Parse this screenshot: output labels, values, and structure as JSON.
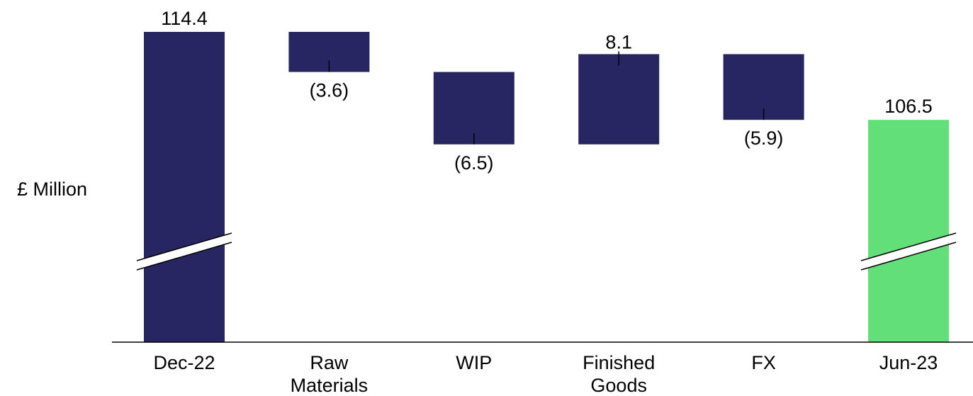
{
  "chart_data": {
    "type": "bar",
    "subtype": "waterfall",
    "ylabel": "£ Million",
    "categories": [
      "Dec-22",
      "Raw Materials",
      "WIP",
      "Finished Goods",
      "FX",
      "Jun-23"
    ],
    "category_lines": [
      [
        "Dec-22"
      ],
      [
        "Raw",
        "Materials"
      ],
      [
        "WIP"
      ],
      [
        "Finished",
        "Goods"
      ],
      [
        "FX"
      ],
      [
        "Jun-23"
      ]
    ],
    "steps": [
      {
        "category": "Dec-22",
        "kind": "total",
        "value": 114.4,
        "label": "114.4"
      },
      {
        "category": "Raw Materials",
        "kind": "delta",
        "value": -3.6,
        "label": "(3.6)"
      },
      {
        "category": "WIP",
        "kind": "delta",
        "value": -6.5,
        "label": "(6.5)"
      },
      {
        "category": "Finished Goods",
        "kind": "delta",
        "value": 8.1,
        "label": "8.1"
      },
      {
        "category": "FX",
        "kind": "delta",
        "value": -5.9,
        "label": "(5.9)"
      },
      {
        "category": "Jun-23",
        "kind": "total",
        "value": 106.5,
        "label": "106.5"
      }
    ],
    "y_axis_broken": true,
    "colors": {
      "bar": "#272663",
      "end_total": "#63DF7A",
      "axis": "#000000"
    },
    "grid": false,
    "legend": "none"
  }
}
